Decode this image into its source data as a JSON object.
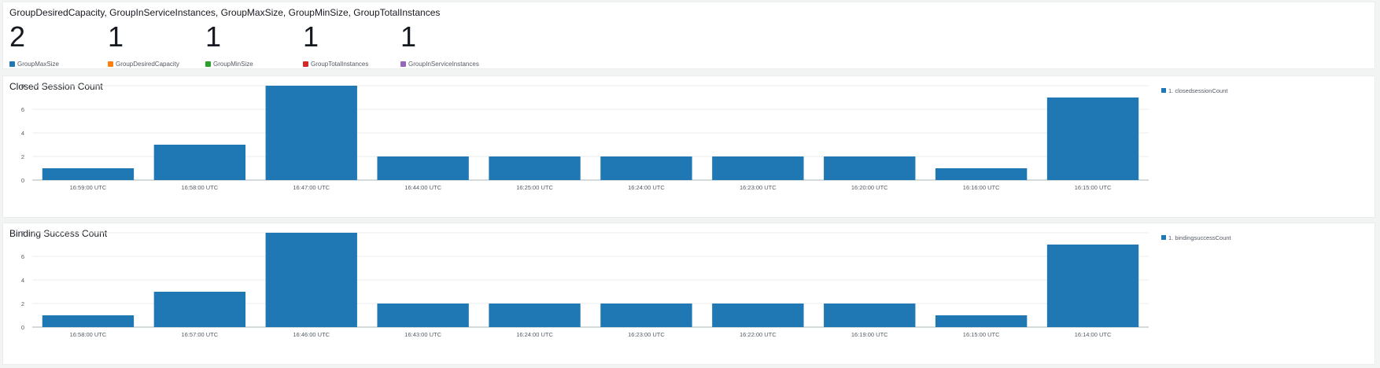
{
  "stats_panel": {
    "title": "GroupDesiredCapacity, GroupInServiceInstances, GroupMaxSize, GroupMinSize, GroupTotalInstances",
    "stats": [
      {
        "value": "2",
        "label": "GroupMaxSize",
        "color": "#1f77b4"
      },
      {
        "value": "1",
        "label": "GroupDesiredCapacity",
        "color": "#ff7f0e"
      },
      {
        "value": "1",
        "label": "GroupMinSize",
        "color": "#2ca02c"
      },
      {
        "value": "1",
        "label": "GroupTotalInstances",
        "color": "#d62728"
      },
      {
        "value": "1",
        "label": "GroupInServiceInstances",
        "color": "#9467bd"
      }
    ]
  },
  "chart_data": [
    {
      "type": "bar",
      "title": "Closed Session Count",
      "categories": [
        "16:59:00 UTC",
        "16:58:00 UTC",
        "16:47:00 UTC",
        "16:44:00 UTC",
        "16:25:00 UTC",
        "16:24:00 UTC",
        "16:23:00 UTC",
        "16:20:00 UTC",
        "16:16:00 UTC",
        "16:15:00 UTC"
      ],
      "series": [
        {
          "name": "1. closedsessionCount",
          "values": [
            1,
            3,
            8,
            2,
            2,
            2,
            2,
            2,
            1,
            7
          ],
          "color": "#1f77b4"
        }
      ],
      "ylim": [
        0,
        8
      ],
      "yticks": [
        "0",
        "2",
        "4",
        "6",
        "8"
      ],
      "grid": true,
      "legend": "right"
    },
    {
      "type": "bar",
      "title": "Binding Success Count",
      "categories": [
        "16:58:00 UTC",
        "16:57:00 UTC",
        "16:46:00 UTC",
        "16:43:00 UTC",
        "16:24:00 UTC",
        "16:23:00 UTC",
        "16:22:00 UTC",
        "16:19:00 UTC",
        "16:15:00 UTC",
        "16:14:00 UTC"
      ],
      "series": [
        {
          "name": "1. bindingsuccessCount",
          "values": [
            1,
            3,
            8,
            2,
            2,
            2,
            2,
            2,
            1,
            7
          ],
          "color": "#1f77b4"
        }
      ],
      "ylim": [
        0,
        8
      ],
      "yticks": [
        "0",
        "2",
        "4",
        "6",
        "8"
      ],
      "grid": true,
      "legend": "right"
    }
  ]
}
